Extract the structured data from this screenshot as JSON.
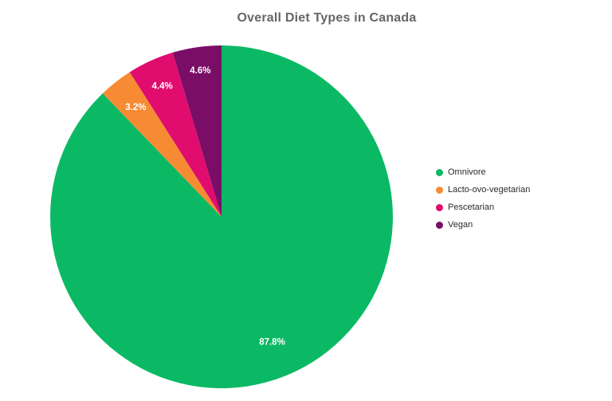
{
  "chart_data": {
    "type": "pie",
    "title": "Overall Diet Types in Canada",
    "categories": [
      "Omnivore",
      "Lacto-ovo-vegetarian",
      "Pescetarian",
      "Vegan"
    ],
    "values": [
      87.8,
      3.2,
      4.4,
      4.6
    ],
    "slice_labels": [
      "87.8%",
      "3.2%",
      "4.4%",
      "4.6%"
    ],
    "colors": [
      "#0bb964",
      "#f68b33",
      "#e00c6e",
      "#7a0d66"
    ],
    "start_angle_deg": 0,
    "direction": "clockwise",
    "legend_position": "right",
    "legend_marker": "circle-icon",
    "slice_label_color": "#ffffff",
    "title_color": "#666666",
    "background_color": "#ffffff"
  }
}
